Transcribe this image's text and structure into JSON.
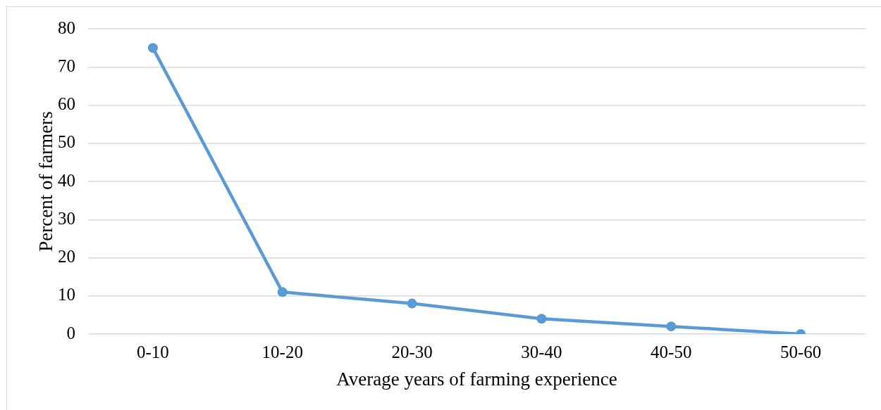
{
  "chart_data": {
    "type": "line",
    "xlabel": "Average years of farming experience",
    "ylabel": "Percent of farmers",
    "categories": [
      "0-10",
      "10-20",
      "20-30",
      "30-40",
      "40-50",
      "50-60"
    ],
    "series": [
      {
        "color": "#5b9bd5",
        "values": [
          75,
          11,
          8,
          4,
          2,
          0
        ]
      }
    ],
    "ylim": [
      0,
      80
    ],
    "yticks": [
      0,
      10,
      20,
      30,
      40,
      50,
      60,
      70,
      80
    ],
    "grid": "y",
    "legend": false,
    "marker": "circle",
    "line_style": "solid"
  }
}
